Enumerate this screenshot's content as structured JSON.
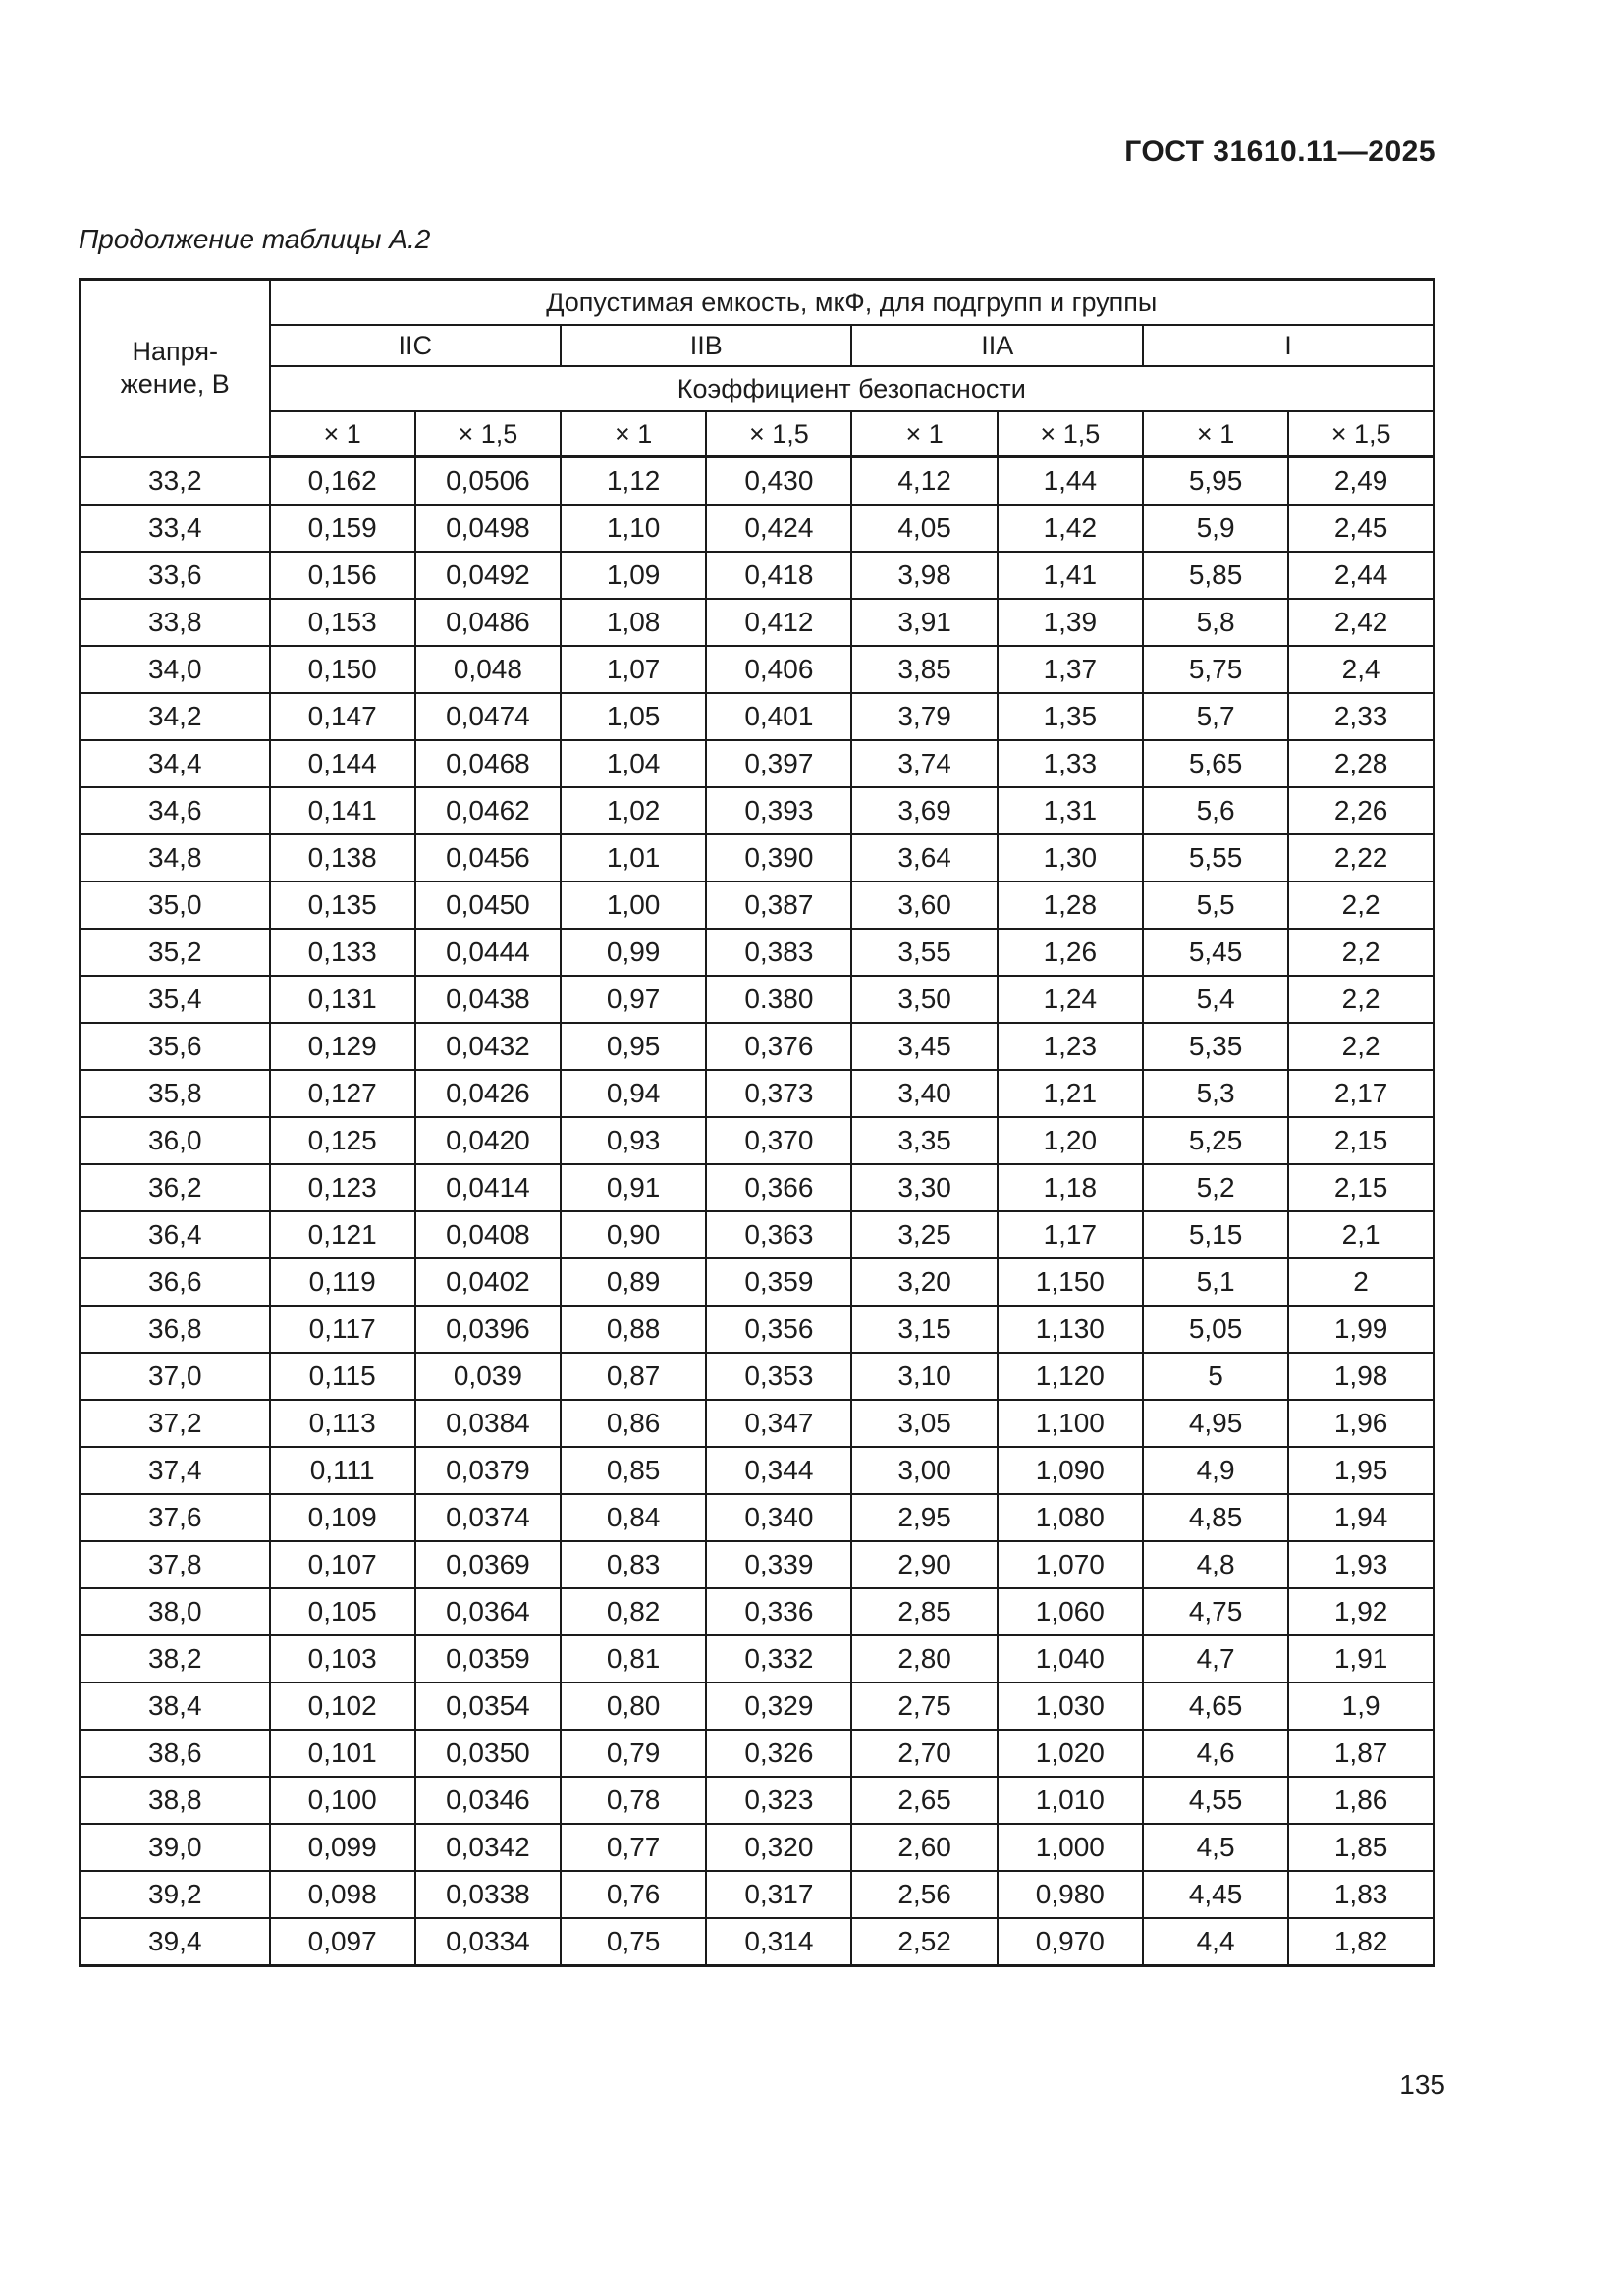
{
  "page": {
    "header": "ГОСТ 31610.11—2025",
    "caption": "Продолжение таблицы А.2",
    "page_number": "135"
  },
  "table": {
    "col1_header": "Напря-\nжение, В",
    "top_header": "Допустимая емкость, мкФ, для подгрупп и группы",
    "groups": [
      "IIC",
      "IIB",
      "IIA",
      "I"
    ],
    "factor_header": "Коэффициент безопасности",
    "factors": [
      "× 1",
      "× 1,5",
      "× 1",
      "× 1,5",
      "× 1",
      "× 1,5",
      "× 1",
      "× 1,5"
    ],
    "rows": [
      [
        "33,2",
        "0,162",
        "0,0506",
        "1,12",
        "0,430",
        "4,12",
        "1,44",
        "5,95",
        "2,49"
      ],
      [
        "33,4",
        "0,159",
        "0,0498",
        "1,10",
        "0,424",
        "4,05",
        "1,42",
        "5,9",
        "2,45"
      ],
      [
        "33,6",
        "0,156",
        "0,0492",
        "1,09",
        "0,418",
        "3,98",
        "1,41",
        "5,85",
        "2,44"
      ],
      [
        "33,8",
        "0,153",
        "0,0486",
        "1,08",
        "0,412",
        "3,91",
        "1,39",
        "5,8",
        "2,42"
      ],
      [
        "34,0",
        "0,150",
        "0,048",
        "1,07",
        "0,406",
        "3,85",
        "1,37",
        "5,75",
        "2,4"
      ],
      [
        "34,2",
        "0,147",
        "0,0474",
        "1,05",
        "0,401",
        "3,79",
        "1,35",
        "5,7",
        "2,33"
      ],
      [
        "34,4",
        "0,144",
        "0,0468",
        "1,04",
        "0,397",
        "3,74",
        "1,33",
        "5,65",
        "2,28"
      ],
      [
        "34,6",
        "0,141",
        "0,0462",
        "1,02",
        "0,393",
        "3,69",
        "1,31",
        "5,6",
        "2,26"
      ],
      [
        "34,8",
        "0,138",
        "0,0456",
        "1,01",
        "0,390",
        "3,64",
        "1,30",
        "5,55",
        "2,22"
      ],
      [
        "35,0",
        "0,135",
        "0,0450",
        "1,00",
        "0,387",
        "3,60",
        "1,28",
        "5,5",
        "2,2"
      ],
      [
        "35,2",
        "0,133",
        "0,0444",
        "0,99",
        "0,383",
        "3,55",
        "1,26",
        "5,45",
        "2,2"
      ],
      [
        "35,4",
        "0,131",
        "0,0438",
        "0,97",
        "0.380",
        "3,50",
        "1,24",
        "5,4",
        "2,2"
      ],
      [
        "35,6",
        "0,129",
        "0,0432",
        "0,95",
        "0,376",
        "3,45",
        "1,23",
        "5,35",
        "2,2"
      ],
      [
        "35,8",
        "0,127",
        "0,0426",
        "0,94",
        "0,373",
        "3,40",
        "1,21",
        "5,3",
        "2,17"
      ],
      [
        "36,0",
        "0,125",
        "0,0420",
        "0,93",
        "0,370",
        "3,35",
        "1,20",
        "5,25",
        "2,15"
      ],
      [
        "36,2",
        "0,123",
        "0,0414",
        "0,91",
        "0,366",
        "3,30",
        "1,18",
        "5,2",
        "2,15"
      ],
      [
        "36,4",
        "0,121",
        "0,0408",
        "0,90",
        "0,363",
        "3,25",
        "1,17",
        "5,15",
        "2,1"
      ],
      [
        "36,6",
        "0,119",
        "0,0402",
        "0,89",
        "0,359",
        "3,20",
        "1,150",
        "5,1",
        "2"
      ],
      [
        "36,8",
        "0,117",
        "0,0396",
        "0,88",
        "0,356",
        "3,15",
        "1,130",
        "5,05",
        "1,99"
      ],
      [
        "37,0",
        "0,115",
        "0,039",
        "0,87",
        "0,353",
        "3,10",
        "1,120",
        "5",
        "1,98"
      ],
      [
        "37,2",
        "0,113",
        "0,0384",
        "0,86",
        "0,347",
        "3,05",
        "1,100",
        "4,95",
        "1,96"
      ],
      [
        "37,4",
        "0,111",
        "0,0379",
        "0,85",
        "0,344",
        "3,00",
        "1,090",
        "4,9",
        "1,95"
      ],
      [
        "37,6",
        "0,109",
        "0,0374",
        "0,84",
        "0,340",
        "2,95",
        "1,080",
        "4,85",
        "1,94"
      ],
      [
        "37,8",
        "0,107",
        "0,0369",
        "0,83",
        "0,339",
        "2,90",
        "1,070",
        "4,8",
        "1,93"
      ],
      [
        "38,0",
        "0,105",
        "0,0364",
        "0,82",
        "0,336",
        "2,85",
        "1,060",
        "4,75",
        "1,92"
      ],
      [
        "38,2",
        "0,103",
        "0,0359",
        "0,81",
        "0,332",
        "2,80",
        "1,040",
        "4,7",
        "1,91"
      ],
      [
        "38,4",
        "0,102",
        "0,0354",
        "0,80",
        "0,329",
        "2,75",
        "1,030",
        "4,65",
        "1,9"
      ],
      [
        "38,6",
        "0,101",
        "0,0350",
        "0,79",
        "0,326",
        "2,70",
        "1,020",
        "4,6",
        "1,87"
      ],
      [
        "38,8",
        "0,100",
        "0,0346",
        "0,78",
        "0,323",
        "2,65",
        "1,010",
        "4,55",
        "1,86"
      ],
      [
        "39,0",
        "0,099",
        "0,0342",
        "0,77",
        "0,320",
        "2,60",
        "1,000",
        "4,5",
        "1,85"
      ],
      [
        "39,2",
        "0,098",
        "0,0338",
        "0,76",
        "0,317",
        "2,56",
        "0,980",
        "4,45",
        "1,83"
      ],
      [
        "39,4",
        "0,097",
        "0,0334",
        "0,75",
        "0,314",
        "2,52",
        "0,970",
        "4,4",
        "1,82"
      ]
    ]
  }
}
